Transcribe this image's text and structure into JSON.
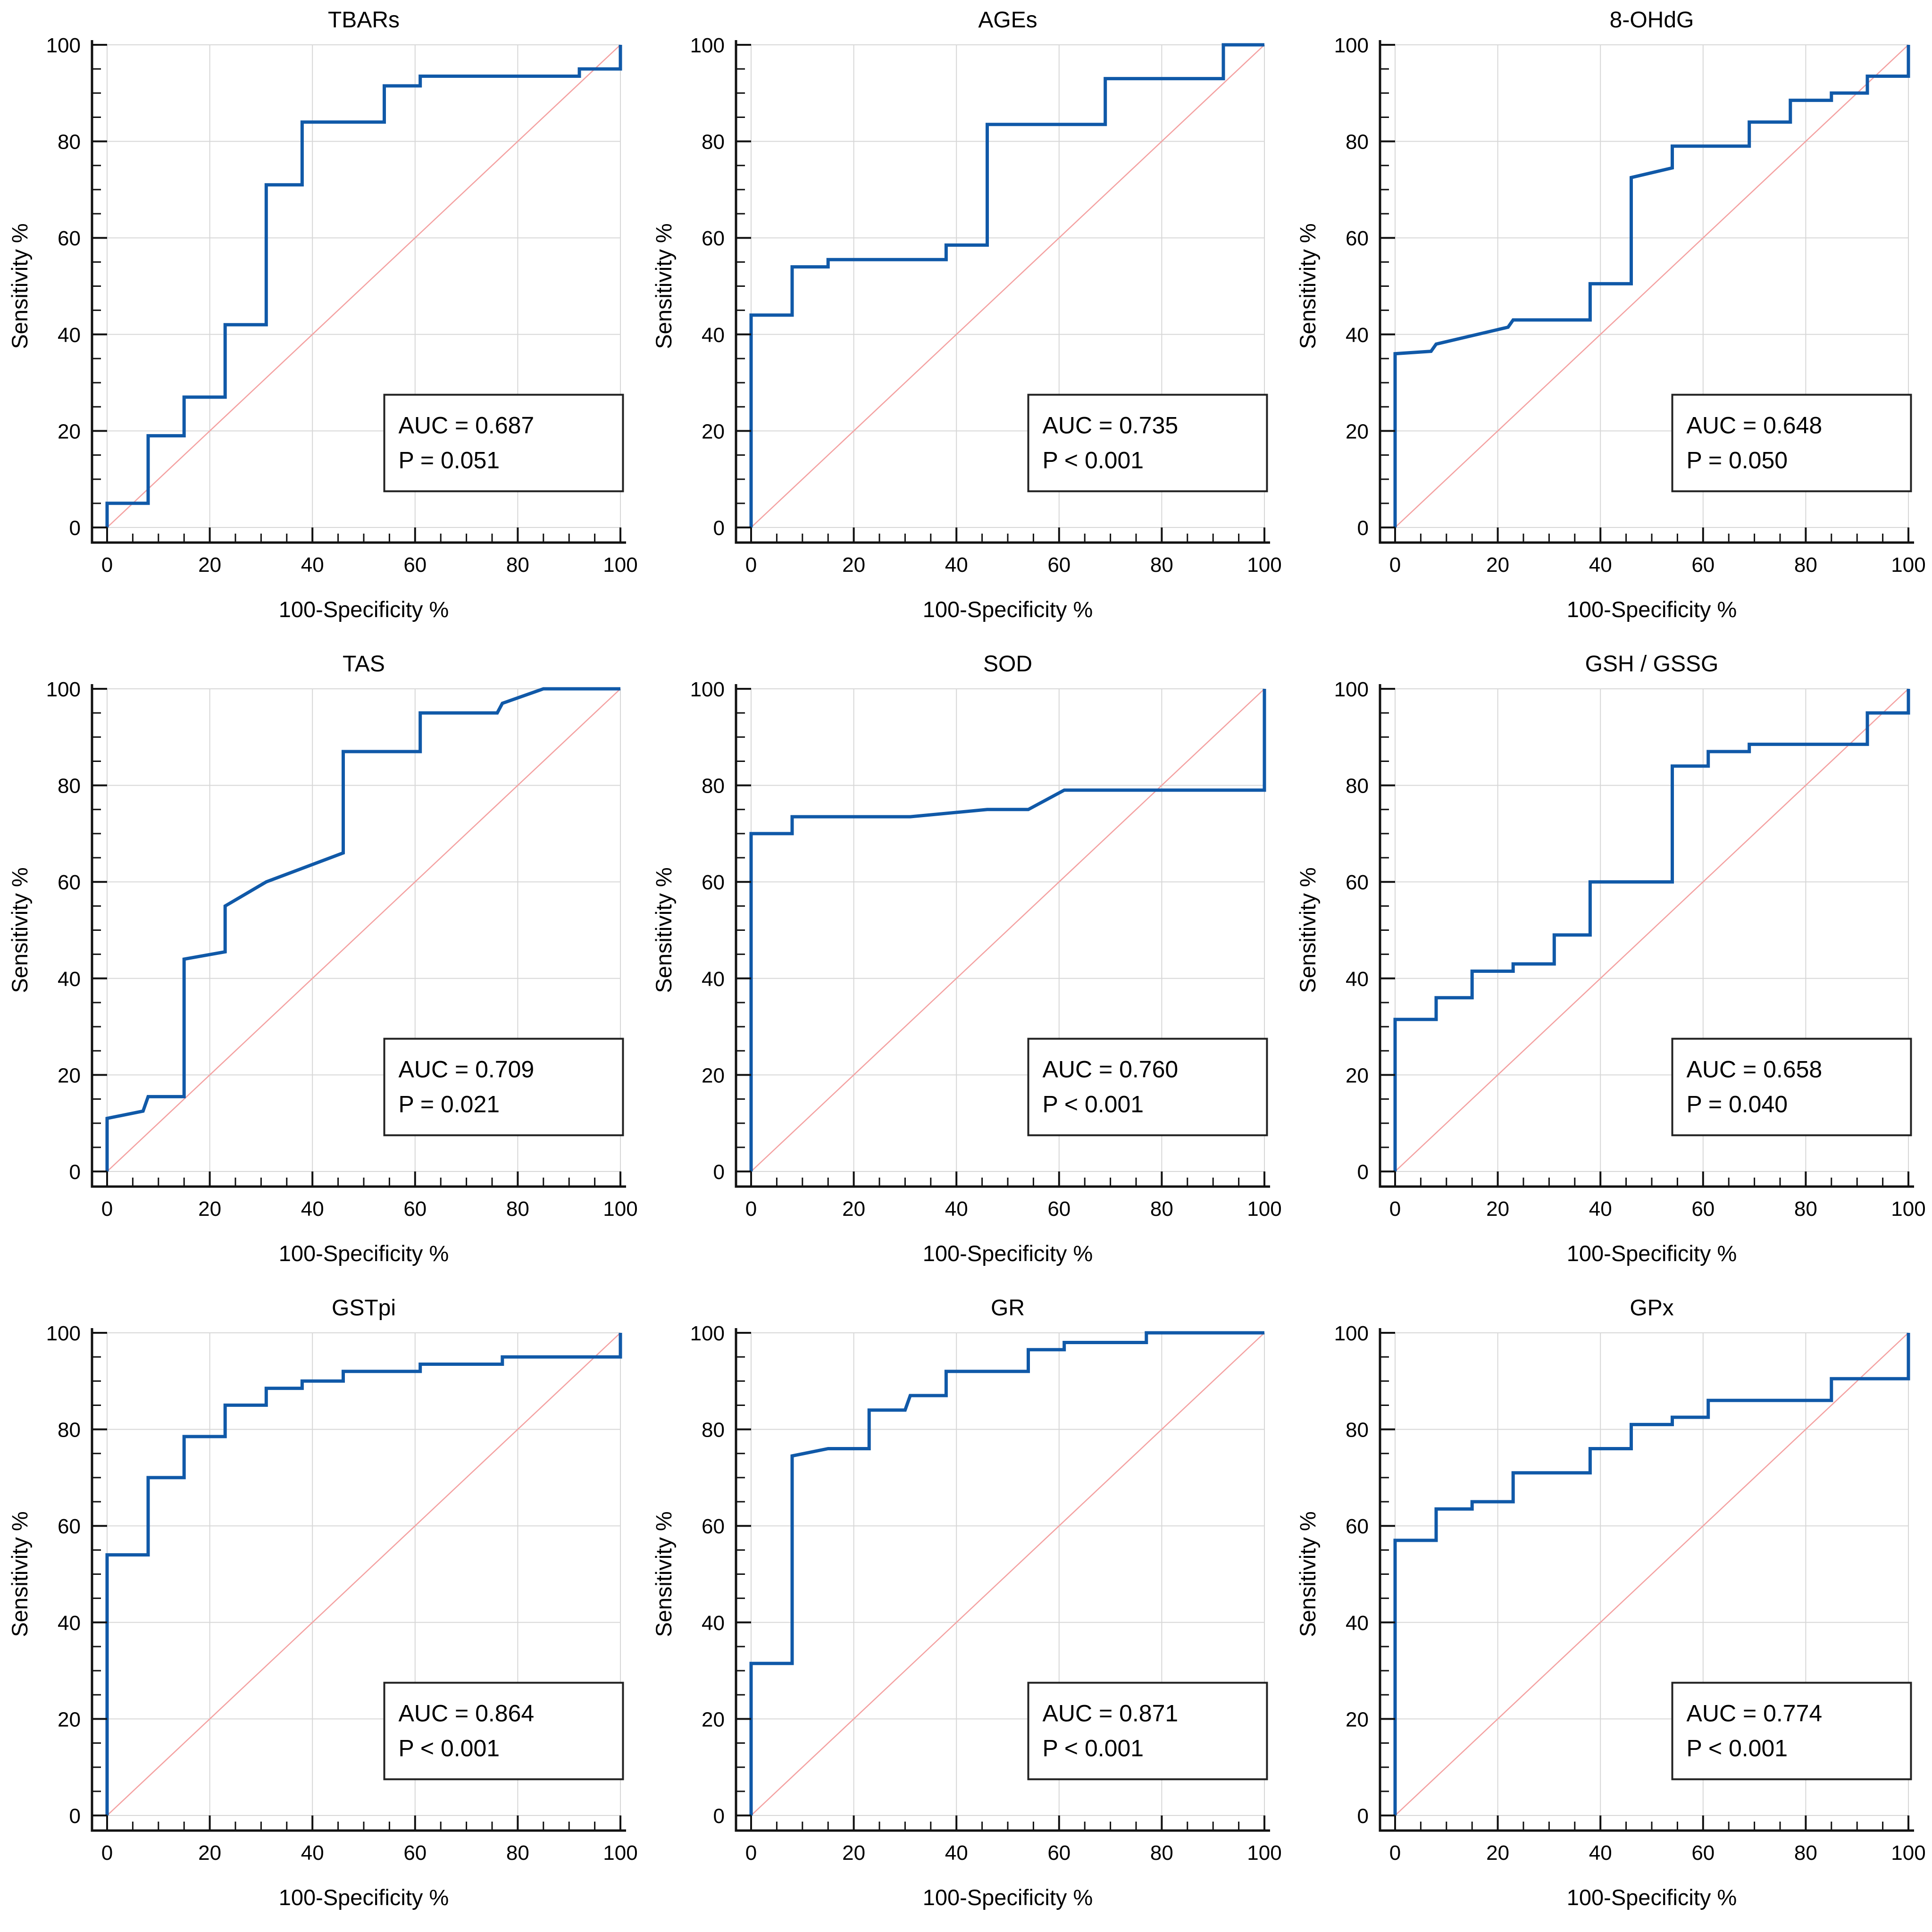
{
  "axes": {
    "x_label": "100-Specificity %",
    "y_label": "Sensitivity %",
    "tick_labels": [
      "0",
      "20",
      "40",
      "60",
      "80",
      "100"
    ],
    "tick_values": [
      0,
      20,
      40,
      60,
      80,
      100
    ],
    "minor_tick_step": 5,
    "xlim": [
      0,
      100
    ],
    "ylim": [
      0,
      100
    ],
    "grid": true,
    "legend_position": "none"
  },
  "colors": {
    "roc_curve": "#1059a8",
    "reference_line": "#f4a1a1",
    "gridline": "#d7d7d7",
    "axis": "#111111",
    "text": "#000000",
    "annotation_border": "#222222",
    "annotation_fill": "#ffffff",
    "background": "#ffffff"
  },
  "chart_data": [
    {
      "type": "line",
      "title": "TBARs",
      "xlabel": "100-Specificity %",
      "ylabel": "Sensitivity %",
      "xlim": [
        0,
        100
      ],
      "ylim": [
        0,
        100
      ],
      "grid": true,
      "annotation": {
        "auc_label": "AUC = 0.687",
        "p_label": "P = 0.051",
        "auc": 0.687,
        "p": "0.051"
      },
      "series": [
        {
          "name": "ROC curve",
          "points": [
            [
              0,
              0
            ],
            [
              0,
              5
            ],
            [
              8,
              5
            ],
            [
              8,
              19
            ],
            [
              15,
              19
            ],
            [
              15,
              27
            ],
            [
              23,
              27
            ],
            [
              23,
              42
            ],
            [
              31,
              42
            ],
            [
              31,
              71
            ],
            [
              38,
              71
            ],
            [
              38,
              84
            ],
            [
              54,
              84
            ],
            [
              54,
              91.5
            ],
            [
              61,
              91.5
            ],
            [
              61,
              93.5
            ],
            [
              92,
              93.5
            ],
            [
              92,
              95
            ],
            [
              100,
              95
            ],
            [
              100,
              100
            ]
          ]
        },
        {
          "name": "reference diagonal",
          "points": [
            [
              0,
              0
            ],
            [
              100,
              100
            ]
          ]
        }
      ]
    },
    {
      "type": "line",
      "title": "AGEs",
      "xlabel": "100-Specificity %",
      "ylabel": "Sensitivity %",
      "xlim": [
        0,
        100
      ],
      "ylim": [
        0,
        100
      ],
      "grid": true,
      "annotation": {
        "auc_label": "AUC = 0.735",
        "p_label": "P < 0.001",
        "auc": 0.735,
        "p": "<0.001"
      },
      "series": [
        {
          "name": "ROC curve",
          "points": [
            [
              0,
              0
            ],
            [
              0,
              44
            ],
            [
              8,
              44
            ],
            [
              8,
              54
            ],
            [
              15,
              54
            ],
            [
              15,
              55.5
            ],
            [
              38,
              55.5
            ],
            [
              38,
              58.5
            ],
            [
              46,
              58.5
            ],
            [
              46,
              83.5
            ],
            [
              69,
              83.5
            ],
            [
              69,
              93
            ],
            [
              92,
              93
            ],
            [
              92,
              100
            ],
            [
              100,
              100
            ]
          ]
        },
        {
          "name": "reference diagonal",
          "points": [
            [
              0,
              0
            ],
            [
              100,
              100
            ]
          ]
        }
      ]
    },
    {
      "type": "line",
      "title": "8-OHdG",
      "xlabel": "100-Specificity %",
      "ylabel": "Sensitivity %",
      "xlim": [
        0,
        100
      ],
      "ylim": [
        0,
        100
      ],
      "grid": true,
      "annotation": {
        "auc_label": "AUC = 0.648",
        "p_label": "P = 0.050",
        "auc": 0.648,
        "p": "0.050"
      },
      "series": [
        {
          "name": "ROC curve",
          "points": [
            [
              0,
              0
            ],
            [
              0,
              36
            ],
            [
              7,
              36.5
            ],
            [
              8,
              38
            ],
            [
              22,
              41.5
            ],
            [
              23,
              43
            ],
            [
              38,
              43
            ],
            [
              38,
              50.5
            ],
            [
              46,
              50.5
            ],
            [
              46,
              72.5
            ],
            [
              54,
              74.5
            ],
            [
              54,
              79
            ],
            [
              69,
              79
            ],
            [
              69,
              84
            ],
            [
              77,
              84
            ],
            [
              77,
              88.5
            ],
            [
              85,
              88.5
            ],
            [
              85,
              90
            ],
            [
              92,
              90
            ],
            [
              92,
              93.5
            ],
            [
              100,
              93.5
            ],
            [
              100,
              100
            ]
          ]
        },
        {
          "name": "reference diagonal",
          "points": [
            [
              0,
              0
            ],
            [
              100,
              100
            ]
          ]
        }
      ]
    },
    {
      "type": "line",
      "title": "TAS",
      "xlabel": "100-Specificity %",
      "ylabel": "Sensitivity %",
      "xlim": [
        0,
        100
      ],
      "ylim": [
        0,
        100
      ],
      "grid": true,
      "annotation": {
        "auc_label": "AUC = 0.709",
        "p_label": "P = 0.021",
        "auc": 0.709,
        "p": "0.021"
      },
      "series": [
        {
          "name": "ROC curve",
          "points": [
            [
              0,
              0
            ],
            [
              0,
              11
            ],
            [
              7,
              12.5
            ],
            [
              8,
              15.5
            ],
            [
              15,
              15.5
            ],
            [
              15,
              44
            ],
            [
              23,
              45.5
            ],
            [
              23,
              55
            ],
            [
              31,
              60
            ],
            [
              46,
              66
            ],
            [
              46,
              87
            ],
            [
              61,
              87
            ],
            [
              61,
              95
            ],
            [
              76,
              95
            ],
            [
              77,
              97
            ],
            [
              85,
              100
            ],
            [
              100,
              100
            ]
          ]
        },
        {
          "name": "reference diagonal",
          "points": [
            [
              0,
              0
            ],
            [
              100,
              100
            ]
          ]
        }
      ]
    },
    {
      "type": "line",
      "title": "SOD",
      "xlabel": "100-Specificity %",
      "ylabel": "Sensitivity %",
      "xlim": [
        0,
        100
      ],
      "ylim": [
        0,
        100
      ],
      "grid": true,
      "annotation": {
        "auc_label": "AUC = 0.760",
        "p_label": "P < 0.001",
        "auc": 0.76,
        "p": "<0.001"
      },
      "series": [
        {
          "name": "ROC curve",
          "points": [
            [
              0,
              0
            ],
            [
              0,
              70
            ],
            [
              8,
              70
            ],
            [
              8,
              73.5
            ],
            [
              31,
              73.5
            ],
            [
              46,
              75
            ],
            [
              54,
              75
            ],
            [
              61,
              79
            ],
            [
              100,
              79
            ],
            [
              100,
              100
            ]
          ]
        },
        {
          "name": "reference diagonal",
          "points": [
            [
              0,
              0
            ],
            [
              100,
              100
            ]
          ]
        }
      ]
    },
    {
      "type": "line",
      "title": "GSH / GSSG",
      "xlabel": "100-Specificity %",
      "ylabel": "Sensitivity %",
      "xlim": [
        0,
        100
      ],
      "ylim": [
        0,
        100
      ],
      "grid": true,
      "annotation": {
        "auc_label": "AUC = 0.658",
        "p_label": "P = 0.040",
        "auc": 0.658,
        "p": "0.040"
      },
      "series": [
        {
          "name": "ROC curve",
          "points": [
            [
              0,
              0
            ],
            [
              0,
              31.5
            ],
            [
              8,
              31.5
            ],
            [
              8,
              36
            ],
            [
              15,
              36
            ],
            [
              15,
              41.5
            ],
            [
              23,
              41.5
            ],
            [
              23,
              43
            ],
            [
              31,
              43
            ],
            [
              31,
              49
            ],
            [
              38,
              49
            ],
            [
              38,
              60
            ],
            [
              54,
              60
            ],
            [
              54,
              84
            ],
            [
              61,
              84
            ],
            [
              61,
              87
            ],
            [
              69,
              87
            ],
            [
              69,
              88.5
            ],
            [
              92,
              88.5
            ],
            [
              92,
              95
            ],
            [
              100,
              95
            ],
            [
              100,
              100
            ]
          ]
        },
        {
          "name": "reference diagonal",
          "points": [
            [
              0,
              0
            ],
            [
              100,
              100
            ]
          ]
        }
      ]
    },
    {
      "type": "line",
      "title": "GSTpi",
      "xlabel": "100-Specificity %",
      "ylabel": "Sensitivity %",
      "xlim": [
        0,
        100
      ],
      "ylim": [
        0,
        100
      ],
      "grid": true,
      "annotation": {
        "auc_label": "AUC = 0.864",
        "p_label": "P < 0.001",
        "auc": 0.864,
        "p": "<0.001"
      },
      "series": [
        {
          "name": "ROC curve",
          "points": [
            [
              0,
              0
            ],
            [
              0,
              54
            ],
            [
              8,
              54
            ],
            [
              8,
              70
            ],
            [
              15,
              70
            ],
            [
              15,
              78.5
            ],
            [
              23,
              78.5
            ],
            [
              23,
              85
            ],
            [
              31,
              85
            ],
            [
              31,
              88.5
            ],
            [
              38,
              88.5
            ],
            [
              38,
              90
            ],
            [
              46,
              90
            ],
            [
              46,
              92
            ],
            [
              61,
              92
            ],
            [
              61,
              93.5
            ],
            [
              77,
              93.5
            ],
            [
              77,
              95
            ],
            [
              100,
              95
            ],
            [
              100,
              100
            ]
          ]
        },
        {
          "name": "reference diagonal",
          "points": [
            [
              0,
              0
            ],
            [
              100,
              100
            ]
          ]
        }
      ]
    },
    {
      "type": "line",
      "title": "GR",
      "xlabel": "100-Specificity %",
      "ylabel": "Sensitivity %",
      "xlim": [
        0,
        100
      ],
      "ylim": [
        0,
        100
      ],
      "grid": true,
      "annotation": {
        "auc_label": "AUC = 0.871",
        "p_label": "P < 0.001",
        "auc": 0.871,
        "p": "<0.001"
      },
      "series": [
        {
          "name": "ROC curve",
          "points": [
            [
              0,
              0
            ],
            [
              0,
              31.5
            ],
            [
              8,
              31.5
            ],
            [
              8,
              74.5
            ],
            [
              15,
              76
            ],
            [
              23,
              76
            ],
            [
              23,
              84
            ],
            [
              30,
              84
            ],
            [
              31,
              87
            ],
            [
              38,
              87
            ],
            [
              38,
              92
            ],
            [
              54,
              92
            ],
            [
              54,
              96.5
            ],
            [
              61,
              96.5
            ],
            [
              61,
              98
            ],
            [
              77,
              98
            ],
            [
              77,
              100
            ],
            [
              100,
              100
            ]
          ]
        },
        {
          "name": "reference diagonal",
          "points": [
            [
              0,
              0
            ],
            [
              100,
              100
            ]
          ]
        }
      ]
    },
    {
      "type": "line",
      "title": "GPx",
      "xlabel": "100-Specificity %",
      "ylabel": "Sensitivity %",
      "xlim": [
        0,
        100
      ],
      "ylim": [
        0,
        100
      ],
      "grid": true,
      "annotation": {
        "auc_label": "AUC = 0.774",
        "p_label": "P < 0.001",
        "auc": 0.774,
        "p": "<0.001"
      },
      "series": [
        {
          "name": "ROC curve",
          "points": [
            [
              0,
              0
            ],
            [
              0,
              57
            ],
            [
              8,
              57
            ],
            [
              8,
              63.5
            ],
            [
              15,
              63.5
            ],
            [
              15,
              65
            ],
            [
              23,
              65
            ],
            [
              23,
              71
            ],
            [
              38,
              71
            ],
            [
              38,
              76
            ],
            [
              46,
              76
            ],
            [
              46,
              81
            ],
            [
              54,
              81
            ],
            [
              54,
              82.5
            ],
            [
              61,
              82.5
            ],
            [
              61,
              86
            ],
            [
              85,
              86
            ],
            [
              85,
              90.5
            ],
            [
              100,
              90.5
            ],
            [
              100,
              100
            ]
          ]
        },
        {
          "name": "reference diagonal",
          "points": [
            [
              0,
              0
            ],
            [
              100,
              100
            ]
          ]
        }
      ]
    }
  ]
}
